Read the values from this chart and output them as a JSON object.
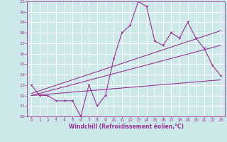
{
  "xlabel": "Windchill (Refroidissement éolien,°C)",
  "xlim": [
    -0.5,
    23.5
  ],
  "ylim": [
    10,
    21
  ],
  "xticks": [
    0,
    1,
    2,
    3,
    4,
    5,
    6,
    7,
    8,
    9,
    10,
    11,
    12,
    13,
    14,
    15,
    16,
    17,
    18,
    19,
    20,
    21,
    22,
    23
  ],
  "yticks": [
    10,
    11,
    12,
    13,
    14,
    15,
    16,
    17,
    18,
    19,
    20,
    21
  ],
  "bg_color": "#cce8e8",
  "line_color": "#993399",
  "grid_color": "#ffffff",
  "main_x": [
    0,
    1,
    2,
    3,
    4,
    5,
    6,
    7,
    8,
    9,
    10,
    11,
    12,
    13,
    14,
    15,
    16,
    17,
    18,
    19,
    20,
    21,
    22,
    23
  ],
  "main_y": [
    13,
    12,
    12,
    11.5,
    11.5,
    11.5,
    10,
    13,
    11,
    12,
    15.5,
    18,
    18.7,
    21,
    20.5,
    17.2,
    16.8,
    18,
    17.5,
    19,
    17.5,
    16.5,
    14.9,
    13.9
  ],
  "trend1_x": [
    0,
    23
  ],
  "trend1_y": [
    12.0,
    16.8
  ],
  "trend2_x": [
    0,
    23
  ],
  "trend2_y": [
    12.2,
    18.2
  ],
  "trend3_x": [
    0,
    23
  ],
  "trend3_y": [
    12.0,
    13.5
  ],
  "tick_fontsize": 4.5,
  "xlabel_fontsize": 5.5
}
